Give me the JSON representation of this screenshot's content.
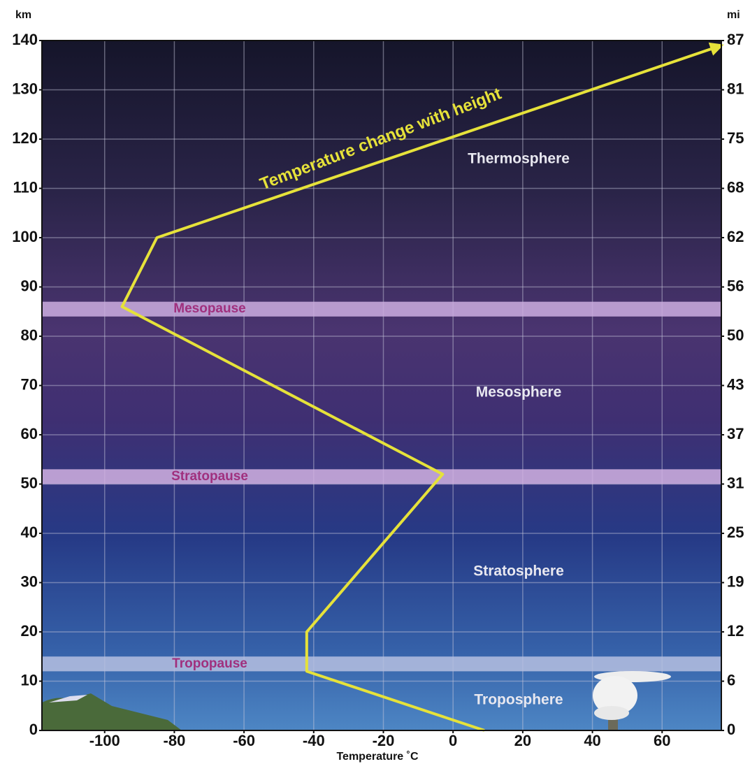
{
  "chart_data": {
    "type": "line",
    "title": "Temperature change with height",
    "x_label": "Temperature ˚C",
    "y_label": "km",
    "y2_label": "mi",
    "series": [
      {
        "name": "Temperature change with height",
        "color": "#e6e23a",
        "x": [
          9,
          -42,
          -42,
          -3,
          -95,
          -85,
          77
        ],
        "values": [
          0,
          12,
          20,
          52,
          86,
          100,
          139
        ]
      }
    ],
    "xlim": [
      -118,
      77
    ],
    "xticks": [
      -100,
      -80,
      -60,
      -40,
      -20,
      0,
      20,
      40,
      60
    ],
    "ylim": [
      0,
      140
    ],
    "yticks": [
      0,
      10,
      20,
      30,
      40,
      50,
      60,
      70,
      80,
      90,
      100,
      110,
      120,
      130,
      140
    ],
    "y2lim": [
      0,
      86.99
    ],
    "y2ticks": [
      0,
      {
        "value": 6.21,
        "label": "6"
      },
      {
        "value": 12.43,
        "label": "12"
      },
      {
        "value": 18.64,
        "label": "19"
      },
      {
        "value": 24.85,
        "label": "25"
      },
      {
        "value": 31.07,
        "label": "31"
      },
      {
        "value": 37.28,
        "label": "37"
      },
      {
        "value": 43.496,
        "label": "43"
      },
      {
        "value": 49.71,
        "label": "50"
      },
      {
        "value": 55.92,
        "label": "56"
      },
      {
        "value": 62.14,
        "label": "62"
      },
      {
        "value": 68.35,
        "label": "68"
      },
      {
        "value": 74.56,
        "label": "75"
      },
      {
        "value": 80.78,
        "label": "81"
      },
      {
        "value": 86.99,
        "label": "87"
      }
    ],
    "grid": true,
    "bands": [
      {
        "label": "Mesopause",
        "range": [
          84,
          87
        ],
        "color": "#cdaee0"
      },
      {
        "label": "Stratopause",
        "range": [
          50,
          53
        ],
        "color": "#d2b2e2"
      },
      {
        "label": "Tropopause",
        "range": [
          12,
          15
        ],
        "color": "#b6bfe0"
      }
    ],
    "layers": [
      "Thermosphere",
      "Mesosphere",
      "Stratosphere",
      "Troposphere"
    ]
  }
}
